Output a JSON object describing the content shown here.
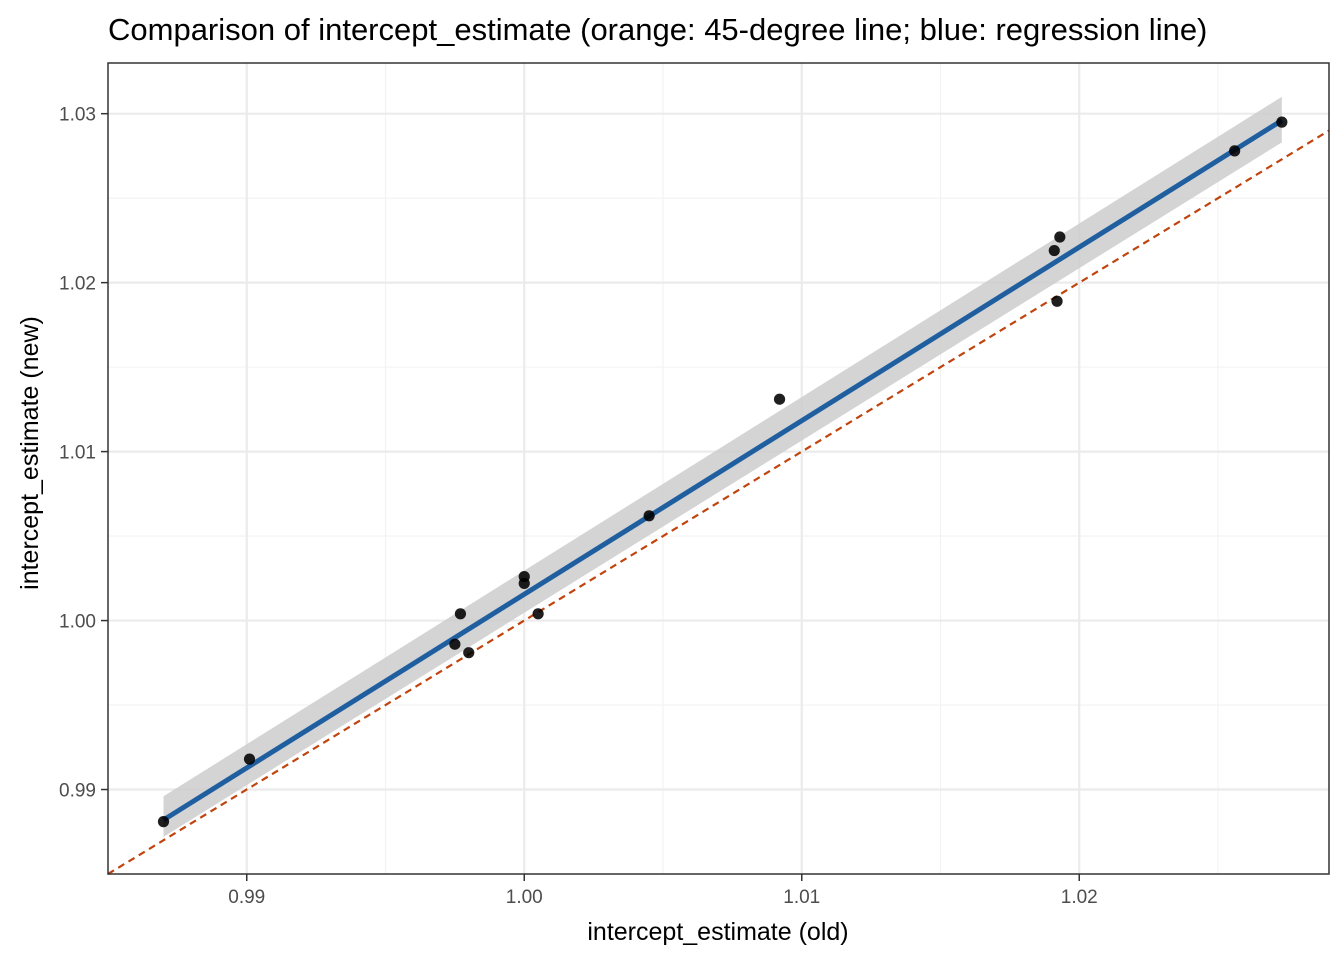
{
  "chart_data": {
    "type": "scatter",
    "title": "Comparison of intercept_estimate (orange: 45-degree line; blue: regression line)",
    "xlabel": "intercept_estimate (old)",
    "ylabel": "intercept_estimate (new)",
    "xlim": [
      0.985,
      1.029
    ],
    "ylim": [
      0.985,
      1.033
    ],
    "x_ticks": [
      0.99,
      1.0,
      1.01,
      1.02
    ],
    "x_tick_labels": [
      "0.99",
      "1.00",
      "1.01",
      "1.02"
    ],
    "y_ticks": [
      0.99,
      1.0,
      1.01,
      1.02,
      1.03
    ],
    "y_tick_labels": [
      "0.99",
      "1.00",
      "1.01",
      "1.02",
      "1.03"
    ],
    "grid": true,
    "points": [
      {
        "x": 0.987,
        "y": 0.9881
      },
      {
        "x": 0.9901,
        "y": 0.9918
      },
      {
        "x": 0.9975,
        "y": 0.9986
      },
      {
        "x": 0.9977,
        "y": 1.0004
      },
      {
        "x": 0.998,
        "y": 0.9981
      },
      {
        "x": 1.0,
        "y": 1.0026
      },
      {
        "x": 1.0,
        "y": 1.0022
      },
      {
        "x": 1.0005,
        "y": 1.0004
      },
      {
        "x": 1.0045,
        "y": 1.0062
      },
      {
        "x": 1.0092,
        "y": 1.0131
      },
      {
        "x": 1.0191,
        "y": 1.0219
      },
      {
        "x": 1.0193,
        "y": 1.0227
      },
      {
        "x": 1.0192,
        "y": 1.0189
      },
      {
        "x": 1.0256,
        "y": 1.0278
      },
      {
        "x": 1.0273,
        "y": 1.0295
      }
    ],
    "reference_line": {
      "slope": 1,
      "intercept": 0,
      "style": "dashed",
      "color": "#c0440e"
    },
    "regression_line": {
      "x": [
        0.987,
        1.0273
      ],
      "y": [
        0.9882,
        1.0296
      ],
      "ci_lower": [
        0.9872,
        1.0283
      ],
      "ci_upper": [
        0.9896,
        1.031
      ],
      "color": "#1f5fa0",
      "band_color": "#cccccc"
    },
    "point_color": "#000000"
  }
}
